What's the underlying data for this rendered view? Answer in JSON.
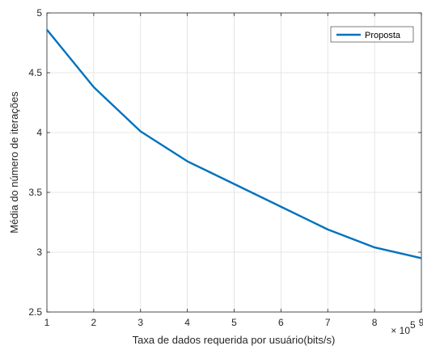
{
  "chart_data": {
    "type": "line",
    "title": "",
    "xlabel": "Taxa de dados requerida por usuário(bits/s)",
    "ylabel": "Média do número de iterações",
    "x_exponent_label": "× 10",
    "x_exponent_power": "5",
    "xlim": [
      1,
      9
    ],
    "ylim": [
      2.5,
      5
    ],
    "xticks": [
      1,
      2,
      3,
      4,
      5,
      6,
      7,
      8,
      9
    ],
    "yticks": [
      2.5,
      3,
      3.5,
      4,
      4.5,
      5
    ],
    "xtick_labels": [
      "1",
      "2",
      "3",
      "4",
      "5",
      "6",
      "7",
      "8",
      "9"
    ],
    "ytick_labels": [
      "2.5",
      "3",
      "3.5",
      "4",
      "4.5",
      "5"
    ],
    "grid": true,
    "legend_position": "top-right",
    "series": [
      {
        "name": "Proposta",
        "color": "#0072BD",
        "x": [
          1,
          2,
          3,
          4,
          5,
          6,
          7,
          8,
          9
        ],
        "y": [
          4.86,
          4.38,
          4.01,
          3.76,
          3.57,
          3.38,
          3.19,
          3.04,
          2.95
        ]
      }
    ]
  }
}
